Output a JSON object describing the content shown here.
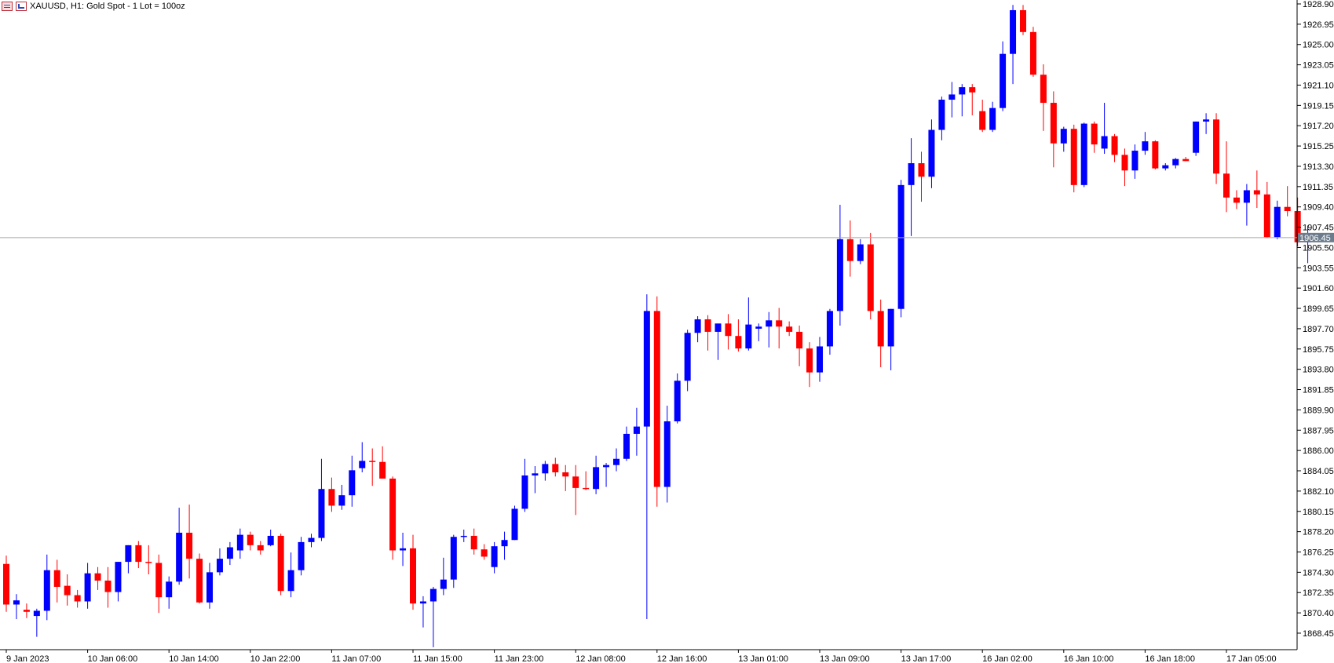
{
  "title_bar": {
    "icons": [
      "grid-icon",
      "chart-icon"
    ],
    "title": "XAUUSD, H1:  Gold  Spot - 1 Lot = 100oz"
  },
  "colors": {
    "bull": "#0000ff",
    "bear": "#ff0000",
    "axis": "#000000",
    "current_line": "#a9a9a9",
    "price_badge": "#6d7c8c"
  },
  "chart_data": {
    "type": "candlestick",
    "symbol": "XAUUSD",
    "timeframe": "H1",
    "ylim": [
      1866.5,
      1928.9
    ],
    "y_ticks": [
      "1928.90",
      "1926.95",
      "1925.00",
      "1923.05",
      "1921.10",
      "1919.15",
      "1917.20",
      "1915.25",
      "1913.30",
      "1911.35",
      "1909.40",
      "1907.45",
      "1905.50",
      "1903.55",
      "1901.60",
      "1899.65",
      "1897.70",
      "1895.75",
      "1893.80",
      "1891.85",
      "1889.90",
      "1887.95",
      "1886.00",
      "1884.05",
      "1882.10",
      "1880.15",
      "1878.20",
      "1876.25",
      "1874.30",
      "1872.35",
      "1870.40",
      "1868.45"
    ],
    "x_ticks": [
      {
        "label": "9 Jan 2023",
        "index": 0
      },
      {
        "label": "10 Jan 06:00",
        "index": 8
      },
      {
        "label": "10 Jan 14:00",
        "index": 16
      },
      {
        "label": "10 Jan 22:00",
        "index": 24
      },
      {
        "label": "11 Jan 07:00",
        "index": 32
      },
      {
        "label": "11 Jan 15:00",
        "index": 40
      },
      {
        "label": "11 Jan 23:00",
        "index": 48
      },
      {
        "label": "12 Jan 08:00",
        "index": 56
      },
      {
        "label": "12 Jan 16:00",
        "index": 64
      },
      {
        "label": "13 Jan 01:00",
        "index": 72
      },
      {
        "label": "13 Jan 09:00",
        "index": 80
      },
      {
        "label": "13 Jan 17:00",
        "index": 88
      },
      {
        "label": "16 Jan 02:00",
        "index": 96
      },
      {
        "label": "16 Jan 10:00",
        "index": 104
      },
      {
        "label": "16 Jan 18:00",
        "index": 112
      },
      {
        "label": "17 Jan 05:00",
        "index": 120
      }
    ],
    "current_price": "1906.45",
    "candles": [
      {
        "o": 1875.1,
        "h": 1875.9,
        "l": 1870.5,
        "c": 1871.2
      },
      {
        "o": 1871.2,
        "h": 1872.2,
        "l": 1869.8,
        "c": 1871.6
      },
      {
        "o": 1870.7,
        "h": 1871.3,
        "l": 1869.9,
        "c": 1870.5
      },
      {
        "o": 1870.1,
        "h": 1870.8,
        "l": 1868.1,
        "c": 1870.6
      },
      {
        "o": 1870.6,
        "h": 1876.0,
        "l": 1869.7,
        "c": 1874.5
      },
      {
        "o": 1874.5,
        "h": 1875.5,
        "l": 1871.4,
        "c": 1872.9
      },
      {
        "o": 1873.0,
        "h": 1874.1,
        "l": 1871.1,
        "c": 1872.1
      },
      {
        "o": 1872.1,
        "h": 1872.6,
        "l": 1870.9,
        "c": 1871.5
      },
      {
        "o": 1871.5,
        "h": 1875.2,
        "l": 1870.8,
        "c": 1874.2
      },
      {
        "o": 1874.2,
        "h": 1874.8,
        "l": 1872.6,
        "c": 1873.5
      },
      {
        "o": 1873.5,
        "h": 1874.8,
        "l": 1870.9,
        "c": 1872.4
      },
      {
        "o": 1872.4,
        "h": 1875.3,
        "l": 1871.5,
        "c": 1875.3
      },
      {
        "o": 1875.3,
        "h": 1876.9,
        "l": 1874.2,
        "c": 1876.9
      },
      {
        "o": 1876.9,
        "h": 1877.3,
        "l": 1874.7,
        "c": 1875.3
      },
      {
        "o": 1875.3,
        "h": 1876.9,
        "l": 1874.1,
        "c": 1875.2
      },
      {
        "o": 1875.2,
        "h": 1876.0,
        "l": 1870.4,
        "c": 1871.9
      },
      {
        "o": 1871.9,
        "h": 1873.9,
        "l": 1870.8,
        "c": 1873.4
      },
      {
        "o": 1873.4,
        "h": 1880.5,
        "l": 1873.1,
        "c": 1878.1
      },
      {
        "o": 1878.1,
        "h": 1880.8,
        "l": 1873.7,
        "c": 1875.6
      },
      {
        "o": 1875.6,
        "h": 1876.1,
        "l": 1871.3,
        "c": 1871.4
      },
      {
        "o": 1871.4,
        "h": 1875.2,
        "l": 1870.8,
        "c": 1874.3
      },
      {
        "o": 1874.3,
        "h": 1876.6,
        "l": 1874.0,
        "c": 1875.6
      },
      {
        "o": 1875.6,
        "h": 1877.2,
        "l": 1875.0,
        "c": 1876.7
      },
      {
        "o": 1876.4,
        "h": 1878.5,
        "l": 1875.6,
        "c": 1877.9
      },
      {
        "o": 1877.9,
        "h": 1878.2,
        "l": 1876.4,
        "c": 1876.9
      },
      {
        "o": 1876.9,
        "h": 1877.3,
        "l": 1876.0,
        "c": 1876.4
      },
      {
        "o": 1876.9,
        "h": 1878.4,
        "l": 1876.8,
        "c": 1877.8
      },
      {
        "o": 1877.8,
        "h": 1878.0,
        "l": 1872.1,
        "c": 1872.5
      },
      {
        "o": 1872.5,
        "h": 1876.2,
        "l": 1871.9,
        "c": 1874.5
      },
      {
        "o": 1874.5,
        "h": 1877.7,
        "l": 1874.0,
        "c": 1877.2
      },
      {
        "o": 1877.2,
        "h": 1878.0,
        "l": 1876.7,
        "c": 1877.6
      },
      {
        "o": 1877.6,
        "h": 1885.2,
        "l": 1877.3,
        "c": 1882.3
      },
      {
        "o": 1882.3,
        "h": 1883.4,
        "l": 1880.1,
        "c": 1880.7
      },
      {
        "o": 1880.7,
        "h": 1882.7,
        "l": 1880.3,
        "c": 1881.7
      },
      {
        "o": 1881.7,
        "h": 1885.5,
        "l": 1880.6,
        "c": 1884.1
      },
      {
        "o": 1884.3,
        "h": 1886.8,
        "l": 1883.9,
        "c": 1885.0
      },
      {
        "o": 1885.0,
        "h": 1886.2,
        "l": 1882.6,
        "c": 1884.9
      },
      {
        "o": 1884.9,
        "h": 1886.4,
        "l": 1883.3,
        "c": 1883.3
      },
      {
        "o": 1883.3,
        "h": 1883.5,
        "l": 1875.5,
        "c": 1876.4
      },
      {
        "o": 1876.4,
        "h": 1878.1,
        "l": 1874.9,
        "c": 1876.6
      },
      {
        "o": 1876.6,
        "h": 1877.9,
        "l": 1870.7,
        "c": 1871.3
      },
      {
        "o": 1871.3,
        "h": 1872.0,
        "l": 1869.0,
        "c": 1871.5
      },
      {
        "o": 1871.5,
        "h": 1872.9,
        "l": 1867.1,
        "c": 1872.7
      },
      {
        "o": 1872.7,
        "h": 1875.7,
        "l": 1872.1,
        "c": 1873.6
      },
      {
        "o": 1873.6,
        "h": 1877.9,
        "l": 1872.8,
        "c": 1877.7
      },
      {
        "o": 1877.7,
        "h": 1878.4,
        "l": 1877.2,
        "c": 1877.8
      },
      {
        "o": 1877.8,
        "h": 1878.5,
        "l": 1876.0,
        "c": 1876.5
      },
      {
        "o": 1876.5,
        "h": 1877.0,
        "l": 1875.5,
        "c": 1875.8
      },
      {
        "o": 1874.8,
        "h": 1877.2,
        "l": 1874.2,
        "c": 1876.8
      },
      {
        "o": 1876.8,
        "h": 1878.2,
        "l": 1875.5,
        "c": 1877.4
      },
      {
        "o": 1877.4,
        "h": 1880.7,
        "l": 1877.4,
        "c": 1880.4
      },
      {
        "o": 1880.4,
        "h": 1885.2,
        "l": 1880.1,
        "c": 1883.6
      },
      {
        "o": 1883.6,
        "h": 1884.5,
        "l": 1881.9,
        "c": 1883.8
      },
      {
        "o": 1883.8,
        "h": 1885.0,
        "l": 1883.1,
        "c": 1884.7
      },
      {
        "o": 1884.7,
        "h": 1885.3,
        "l": 1883.5,
        "c": 1883.9
      },
      {
        "o": 1883.9,
        "h": 1884.6,
        "l": 1882.1,
        "c": 1883.5
      },
      {
        "o": 1883.5,
        "h": 1884.6,
        "l": 1879.8,
        "c": 1882.4
      },
      {
        "o": 1882.4,
        "h": 1884.0,
        "l": 1882.2,
        "c": 1882.3
      },
      {
        "o": 1882.3,
        "h": 1885.5,
        "l": 1881.8,
        "c": 1884.4
      },
      {
        "o": 1884.4,
        "h": 1884.8,
        "l": 1882.5,
        "c": 1884.6
      },
      {
        "o": 1884.6,
        "h": 1886.2,
        "l": 1884.0,
        "c": 1885.2
      },
      {
        "o": 1885.2,
        "h": 1888.3,
        "l": 1885.0,
        "c": 1887.6
      },
      {
        "o": 1887.6,
        "h": 1890.1,
        "l": 1885.5,
        "c": 1888.3
      },
      {
        "o": 1888.3,
        "h": 1901.0,
        "l": 1869.8,
        "c": 1899.4
      },
      {
        "o": 1899.4,
        "h": 1900.8,
        "l": 1880.6,
        "c": 1882.5
      },
      {
        "o": 1882.5,
        "h": 1890.3,
        "l": 1881.0,
        "c": 1888.8
      },
      {
        "o": 1888.8,
        "h": 1893.4,
        "l": 1888.6,
        "c": 1892.7
      },
      {
        "o": 1892.7,
        "h": 1897.6,
        "l": 1891.7,
        "c": 1897.3
      },
      {
        "o": 1897.3,
        "h": 1898.9,
        "l": 1896.4,
        "c": 1898.6
      },
      {
        "o": 1898.6,
        "h": 1899.0,
        "l": 1895.6,
        "c": 1897.4
      },
      {
        "o": 1897.4,
        "h": 1897.9,
        "l": 1894.7,
        "c": 1898.2
      },
      {
        "o": 1898.2,
        "h": 1899.1,
        "l": 1895.7,
        "c": 1897.0
      },
      {
        "o": 1897.0,
        "h": 1898.6,
        "l": 1895.5,
        "c": 1895.8
      },
      {
        "o": 1895.8,
        "h": 1900.7,
        "l": 1895.6,
        "c": 1898.1
      },
      {
        "o": 1897.7,
        "h": 1898.2,
        "l": 1896.5,
        "c": 1897.9
      },
      {
        "o": 1897.9,
        "h": 1899.3,
        "l": 1895.9,
        "c": 1898.5
      },
      {
        "o": 1898.5,
        "h": 1899.7,
        "l": 1895.8,
        "c": 1897.9
      },
      {
        "o": 1897.9,
        "h": 1898.4,
        "l": 1897.0,
        "c": 1897.4
      },
      {
        "o": 1897.4,
        "h": 1898.0,
        "l": 1894.1,
        "c": 1895.8
      },
      {
        "o": 1895.8,
        "h": 1896.4,
        "l": 1892.1,
        "c": 1893.5
      },
      {
        "o": 1893.5,
        "h": 1896.9,
        "l": 1892.6,
        "c": 1896.0
      },
      {
        "o": 1896.0,
        "h": 1899.6,
        "l": 1895.2,
        "c": 1899.4
      },
      {
        "o": 1899.4,
        "h": 1909.6,
        "l": 1898.0,
        "c": 1906.3
      },
      {
        "o": 1906.3,
        "h": 1908.1,
        "l": 1902.7,
        "c": 1904.2
      },
      {
        "o": 1904.2,
        "h": 1906.3,
        "l": 1903.9,
        "c": 1905.8
      },
      {
        "o": 1905.8,
        "h": 1906.9,
        "l": 1898.6,
        "c": 1899.4
      },
      {
        "o": 1899.4,
        "h": 1900.5,
        "l": 1894.0,
        "c": 1896.0
      },
      {
        "o": 1896.0,
        "h": 1899.6,
        "l": 1893.7,
        "c": 1899.6
      },
      {
        "o": 1899.6,
        "h": 1912.0,
        "l": 1898.8,
        "c": 1911.5
      },
      {
        "o": 1911.5,
        "h": 1916.0,
        "l": 1906.6,
        "c": 1913.6
      },
      {
        "o": 1913.6,
        "h": 1914.7,
        "l": 1909.9,
        "c": 1912.3
      },
      {
        "o": 1912.3,
        "h": 1917.8,
        "l": 1911.2,
        "c": 1916.8
      },
      {
        "o": 1916.8,
        "h": 1920.0,
        "l": 1915.8,
        "c": 1919.7
      },
      {
        "o": 1919.7,
        "h": 1921.4,
        "l": 1918.0,
        "c": 1920.2
      },
      {
        "o": 1920.2,
        "h": 1921.2,
        "l": 1918.1,
        "c": 1920.9
      },
      {
        "o": 1920.9,
        "h": 1921.2,
        "l": 1918.2,
        "c": 1920.4
      },
      {
        "o": 1918.6,
        "h": 1919.7,
        "l": 1916.6,
        "c": 1916.8
      },
      {
        "o": 1916.8,
        "h": 1919.5,
        "l": 1916.6,
        "c": 1918.9
      },
      {
        "o": 1918.9,
        "h": 1925.3,
        "l": 1918.6,
        "c": 1924.1
      },
      {
        "o": 1924.1,
        "h": 1928.8,
        "l": 1921.2,
        "c": 1928.3
      },
      {
        "o": 1928.3,
        "h": 1928.8,
        "l": 1925.9,
        "c": 1926.2
      },
      {
        "o": 1926.2,
        "h": 1926.7,
        "l": 1921.9,
        "c": 1922.1
      },
      {
        "o": 1922.1,
        "h": 1923.1,
        "l": 1916.7,
        "c": 1919.4
      },
      {
        "o": 1919.4,
        "h": 1920.5,
        "l": 1913.2,
        "c": 1915.5
      },
      {
        "o": 1915.5,
        "h": 1917.1,
        "l": 1914.7,
        "c": 1916.9
      },
      {
        "o": 1916.9,
        "h": 1917.3,
        "l": 1910.8,
        "c": 1911.5
      },
      {
        "o": 1911.5,
        "h": 1917.5,
        "l": 1911.3,
        "c": 1917.4
      },
      {
        "o": 1917.4,
        "h": 1917.6,
        "l": 1914.6,
        "c": 1915.4
      },
      {
        "o": 1915.0,
        "h": 1919.4,
        "l": 1914.5,
        "c": 1916.2
      },
      {
        "o": 1916.2,
        "h": 1916.4,
        "l": 1913.7,
        "c": 1914.4
      },
      {
        "o": 1914.4,
        "h": 1915.0,
        "l": 1911.4,
        "c": 1912.9
      },
      {
        "o": 1912.9,
        "h": 1915.4,
        "l": 1912.1,
        "c": 1914.8
      },
      {
        "o": 1914.8,
        "h": 1916.6,
        "l": 1914.4,
        "c": 1915.7
      },
      {
        "o": 1915.7,
        "h": 1915.8,
        "l": 1913.0,
        "c": 1913.1
      },
      {
        "o": 1913.1,
        "h": 1913.6,
        "l": 1912.9,
        "c": 1913.4
      },
      {
        "o": 1913.4,
        "h": 1914.1,
        "l": 1913.1,
        "c": 1914.0
      },
      {
        "o": 1914.0,
        "h": 1914.2,
        "l": 1913.8,
        "c": 1913.8
      },
      {
        "o": 1914.6,
        "h": 1917.6,
        "l": 1914.3,
        "c": 1917.6
      },
      {
        "o": 1917.6,
        "h": 1918.4,
        "l": 1916.4,
        "c": 1917.8
      },
      {
        "o": 1917.8,
        "h": 1918.4,
        "l": 1911.6,
        "c": 1912.6
      },
      {
        "o": 1912.6,
        "h": 1915.7,
        "l": 1908.9,
        "c": 1910.3
      },
      {
        "o": 1910.3,
        "h": 1911.0,
        "l": 1909.2,
        "c": 1909.8
      },
      {
        "o": 1909.8,
        "h": 1911.6,
        "l": 1907.6,
        "c": 1911.0
      },
      {
        "o": 1911.0,
        "h": 1912.9,
        "l": 1909.3,
        "c": 1910.6
      },
      {
        "o": 1910.6,
        "h": 1911.8,
        "l": 1906.4,
        "c": 1906.5
      },
      {
        "o": 1906.5,
        "h": 1910.0,
        "l": 1906.3,
        "c": 1909.4
      },
      {
        "o": 1909.4,
        "h": 1911.4,
        "l": 1908.5,
        "c": 1909.0
      },
      {
        "o": 1909.0,
        "h": 1910.3,
        "l": 1905.6,
        "c": 1906.0
      },
      {
        "o": 1906.0,
        "h": 1907.6,
        "l": 1904.0,
        "c": 1906.4
      }
    ]
  }
}
